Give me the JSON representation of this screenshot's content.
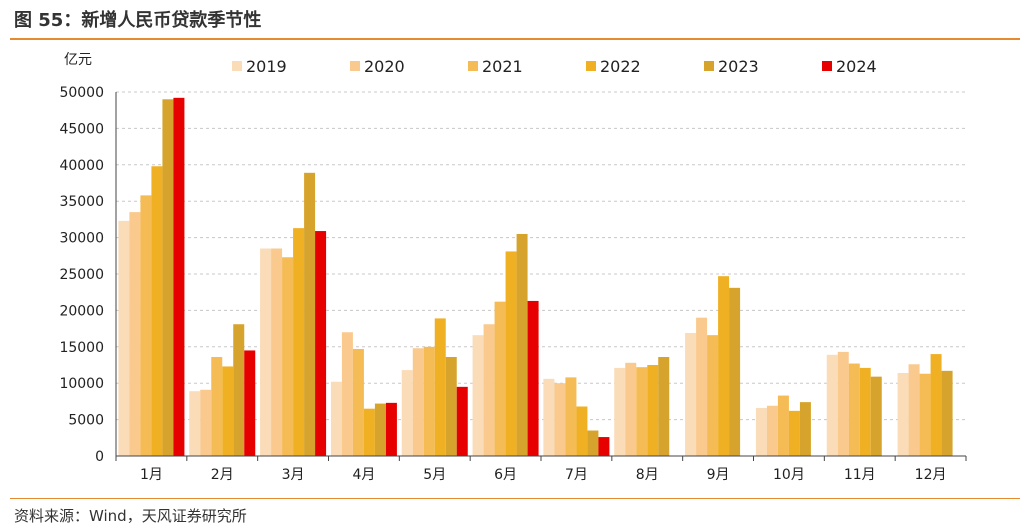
{
  "header": {
    "title": "图 55：新增人民币贷款季节性"
  },
  "footer": {
    "source": "资料来源：Wind，天风证券研究所"
  },
  "colors": {
    "2019": "#fbdcb8",
    "2020": "#f9c98e",
    "2021": "#f5bb55",
    "2022": "#f0b024",
    "2023": "#d6a42c",
    "2024": "#e60000",
    "rule": "#e58a2f"
  },
  "chart_data": {
    "type": "bar",
    "ylabel": "亿元",
    "ylim": [
      0,
      50000
    ],
    "yticks": [
      0,
      5000,
      10000,
      15000,
      20000,
      25000,
      30000,
      35000,
      40000,
      45000,
      50000
    ],
    "grid": true,
    "legend_position": "top",
    "categories": [
      "1月",
      "2月",
      "3月",
      "4月",
      "5月",
      "6月",
      "7月",
      "8月",
      "9月",
      "10月",
      "11月",
      "12月"
    ],
    "series": [
      {
        "name": "2019",
        "values": [
          32300,
          8900,
          28500,
          10200,
          11800,
          16600,
          10600,
          12100,
          16900,
          6600,
          13900,
          11400
        ]
      },
      {
        "name": "2020",
        "values": [
          33500,
          9100,
          28500,
          17000,
          14800,
          18100,
          10000,
          12800,
          19000,
          6900,
          14300,
          12600
        ]
      },
      {
        "name": "2021",
        "values": [
          35800,
          13600,
          27300,
          14700,
          15000,
          21200,
          10800,
          12200,
          16600,
          8300,
          12700,
          11300
        ]
      },
      {
        "name": "2022",
        "values": [
          39800,
          12300,
          31300,
          6500,
          18900,
          28100,
          6800,
          12500,
          24700,
          6200,
          12100,
          14000
        ]
      },
      {
        "name": "2023",
        "values": [
          49000,
          18100,
          38900,
          7200,
          13600,
          30500,
          3500,
          13600,
          23100,
          7400,
          10900,
          11700
        ]
      },
      {
        "name": "2024",
        "values": [
          49200,
          14500,
          30900,
          7300,
          9500,
          21300,
          2600,
          null,
          null,
          null,
          null,
          null
        ]
      }
    ]
  }
}
